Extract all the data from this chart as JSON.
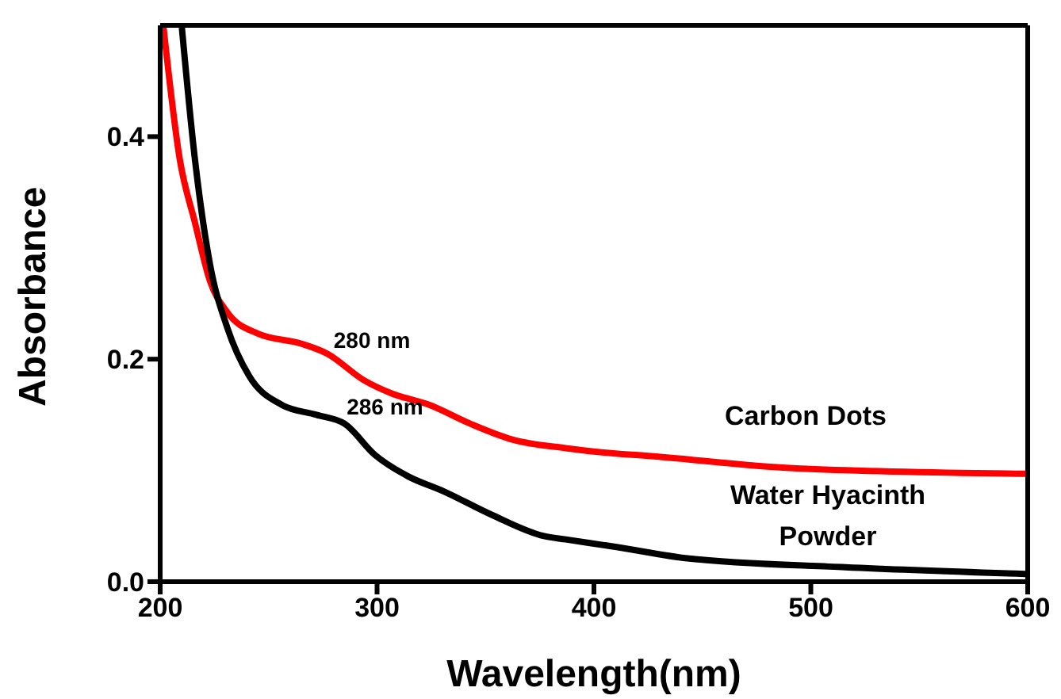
{
  "chart_data": {
    "type": "line",
    "xlabel": "Wavelength(nm)",
    "ylabel": "Absorbance",
    "xlim": [
      200,
      600
    ],
    "xticks": [
      200,
      300,
      400,
      500,
      600
    ],
    "ylim": [
      0,
      0.5
    ],
    "yticks": [
      {
        "value": 0,
        "label": "0.0"
      },
      0.2,
      0.4
    ],
    "grid": false,
    "legend": false,
    "marker": "none",
    "line_style": "solid",
    "series": [
      {
        "name": "Carbon Dots",
        "color": "#ff0000",
        "x": [
          201.5,
          209,
          216,
          223,
          231,
          245,
          265,
          277,
          294,
          307,
          324,
          343,
          362,
          387,
          411,
          419,
          492,
          599
        ],
        "values": [
          0.499,
          0.38,
          0.323,
          0.27,
          0.242,
          0.223,
          0.214,
          0.205,
          0.181,
          0.169,
          0.159,
          0.142,
          0.128,
          0.12,
          0.115,
          0.114,
          0.102,
          0.097
        ]
      },
      {
        "name": "Water Hyacinth Powder",
        "color": "#000000",
        "x": [
          210,
          216,
          223,
          231,
          241,
          256,
          272,
          285,
          299,
          314,
          331,
          353,
          377,
          387,
          411,
          443,
          516,
          599
        ],
        "values": [
          0.498,
          0.38,
          0.285,
          0.228,
          0.185,
          0.159,
          0.15,
          0.142,
          0.114,
          0.095,
          0.081,
          0.06,
          0.041,
          0.038,
          0.031,
          0.021,
          0.013,
          0.007
        ]
      }
    ],
    "annotations": [
      {
        "text": "280 nm",
        "x": 280,
        "y": 0.21
      },
      {
        "text": "286 nm",
        "x": 286,
        "y": 0.15
      }
    ]
  }
}
